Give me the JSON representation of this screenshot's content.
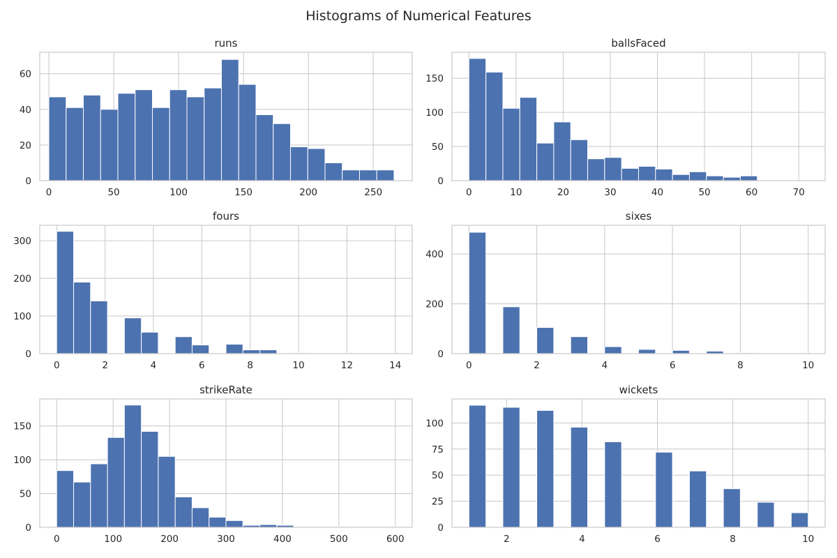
{
  "figure": {
    "title": "Histograms of Numerical Features"
  },
  "style": {
    "bar_color": "#4c72b0",
    "grid_color": "#cccccc",
    "frame_color": "#cccccc",
    "text_color": "#262626"
  },
  "chart_data": [
    {
      "type": "bar",
      "title": "runs",
      "bins": [
        [
          0,
          13.3
        ],
        [
          13.3,
          26.6
        ],
        [
          26.6,
          39.9
        ],
        [
          39.9,
          53.2
        ],
        [
          53.2,
          66.5
        ],
        [
          66.5,
          79.8
        ],
        [
          79.8,
          93.1
        ],
        [
          93.1,
          106.4
        ],
        [
          106.4,
          119.7
        ],
        [
          119.7,
          133
        ],
        [
          133,
          146.3
        ],
        [
          146.3,
          159.6
        ],
        [
          159.6,
          172.9
        ],
        [
          172.9,
          186.2
        ],
        [
          186.2,
          199.5
        ],
        [
          199.5,
          212.8
        ],
        [
          212.8,
          226.1
        ],
        [
          226.1,
          239.4
        ],
        [
          239.4,
          252.7
        ],
        [
          252.7,
          266
        ]
      ],
      "values": [
        47,
        41,
        48,
        40,
        49,
        51,
        41,
        51,
        47,
        52,
        68,
        54,
        37,
        32,
        19,
        18,
        10,
        6,
        6,
        6
      ],
      "xlim": [
        -7,
        280
      ],
      "ylim": [
        0,
        72
      ],
      "xticks": [
        0,
        50,
        100,
        150,
        200,
        250
      ],
      "yticks": [
        0,
        20,
        40,
        60
      ],
      "grid": true
    },
    {
      "type": "bar",
      "title": "ballsFaced",
      "bins": [
        [
          0,
          3.6
        ],
        [
          3.6,
          7.2
        ],
        [
          7.2,
          10.8
        ],
        [
          10.8,
          14.4
        ],
        [
          14.4,
          18
        ],
        [
          18,
          21.6
        ],
        [
          21.6,
          25.2
        ],
        [
          25.2,
          28.8
        ],
        [
          28.8,
          32.4
        ],
        [
          32.4,
          36
        ],
        [
          36,
          39.6
        ],
        [
          39.6,
          43.2
        ],
        [
          43.2,
          46.8
        ],
        [
          46.8,
          50.4
        ],
        [
          50.4,
          54
        ],
        [
          54,
          57.6
        ],
        [
          57.6,
          61.2
        ],
        [
          61.2,
          64.8
        ],
        [
          64.8,
          68.4
        ],
        [
          68.4,
          72
        ]
      ],
      "values": [
        179,
        159,
        106,
        122,
        55,
        86,
        60,
        32,
        34,
        18,
        21,
        17,
        9,
        13,
        7,
        5,
        7,
        1,
        1,
        1
      ],
      "xlim": [
        -3.6,
        75.6
      ],
      "ylim": [
        0,
        188
      ],
      "xticks": [
        0,
        10,
        20,
        30,
        40,
        50,
        60,
        70
      ],
      "yticks": [
        0,
        50,
        100,
        150
      ],
      "grid": true
    },
    {
      "type": "bar",
      "title": "fours",
      "bins": [
        [
          0,
          0.7
        ],
        [
          0.7,
          1.4
        ],
        [
          1.4,
          2.1
        ],
        [
          2.1,
          2.8
        ],
        [
          2.8,
          3.5
        ],
        [
          3.5,
          4.2
        ],
        [
          4.2,
          4.9
        ],
        [
          4.9,
          5.6
        ],
        [
          5.6,
          6.3
        ],
        [
          6.3,
          7
        ],
        [
          7,
          7.7
        ],
        [
          7.7,
          8.4
        ],
        [
          8.4,
          9.1
        ],
        [
          9.1,
          9.8
        ],
        [
          9.8,
          10.5
        ],
        [
          10.5,
          11.2
        ],
        [
          11.2,
          11.9
        ],
        [
          11.9,
          12.6
        ],
        [
          12.6,
          13.3
        ],
        [
          13.3,
          14
        ]
      ],
      "values": [
        325,
        190,
        140,
        0,
        95,
        57,
        0,
        45,
        23,
        0,
        25,
        10,
        10,
        0,
        2,
        1,
        0,
        1,
        0,
        1
      ],
      "xlim": [
        -0.7,
        14.7
      ],
      "ylim": [
        0,
        341
      ],
      "xticks": [
        0,
        2,
        4,
        6,
        8,
        10,
        12,
        14
      ],
      "yticks": [
        0,
        100,
        200,
        300
      ],
      "grid": true
    },
    {
      "type": "bar",
      "title": "sixes",
      "bins": [
        [
          0,
          0.5
        ],
        [
          0.5,
          1
        ],
        [
          1,
          1.5
        ],
        [
          1.5,
          2
        ],
        [
          2,
          2.5
        ],
        [
          2.5,
          3
        ],
        [
          3,
          3.5
        ],
        [
          3.5,
          4
        ],
        [
          4,
          4.5
        ],
        [
          4.5,
          5
        ],
        [
          5,
          5.5
        ],
        [
          5.5,
          6
        ],
        [
          6,
          6.5
        ],
        [
          6.5,
          7
        ],
        [
          7,
          7.5
        ],
        [
          7.5,
          8
        ],
        [
          8,
          8.5
        ],
        [
          8.5,
          9
        ],
        [
          9,
          9.5
        ],
        [
          9.5,
          10
        ]
      ],
      "values": [
        487,
        0,
        188,
        0,
        105,
        0,
        68,
        0,
        28,
        0,
        17,
        0,
        13,
        0,
        10,
        0,
        3,
        0,
        1,
        1
      ],
      "xlim": [
        -0.5,
        10.5
      ],
      "ylim": [
        0,
        515
      ],
      "xticks": [
        0,
        2,
        4,
        6,
        8,
        10
      ],
      "yticks": [
        0,
        200,
        400
      ],
      "grid": true
    },
    {
      "type": "bar",
      "title": "strikeRate",
      "bins": [
        [
          0,
          30
        ],
        [
          30,
          60
        ],
        [
          60,
          90
        ],
        [
          90,
          120
        ],
        [
          120,
          150
        ],
        [
          150,
          180
        ],
        [
          180,
          210
        ],
        [
          210,
          240
        ],
        [
          240,
          270
        ],
        [
          270,
          300
        ],
        [
          300,
          330
        ],
        [
          330,
          360
        ],
        [
          360,
          390
        ],
        [
          390,
          420
        ],
        [
          420,
          450
        ],
        [
          450,
          480
        ],
        [
          480,
          510
        ],
        [
          510,
          540
        ],
        [
          540,
          570
        ],
        [
          570,
          600
        ]
      ],
      "values": [
        84,
        67,
        94,
        133,
        181,
        142,
        105,
        45,
        29,
        15,
        10,
        3,
        4,
        3,
        1,
        1,
        1,
        0,
        0,
        1
      ],
      "xlim": [
        -30,
        630
      ],
      "ylim": [
        0,
        190
      ],
      "xticks": [
        0,
        100,
        200,
        300,
        400,
        500,
        600
      ],
      "yticks": [
        0,
        50,
        100,
        150
      ],
      "grid": true
    },
    {
      "type": "bar",
      "title": "wickets",
      "bins": [
        [
          1,
          1.45
        ],
        [
          1.45,
          1.9
        ],
        [
          1.9,
          2.35
        ],
        [
          2.35,
          2.8
        ],
        [
          2.8,
          3.25
        ],
        [
          3.25,
          3.7
        ],
        [
          3.7,
          4.15
        ],
        [
          4.15,
          4.6
        ],
        [
          4.6,
          5.05
        ],
        [
          5.05,
          5.5
        ],
        [
          5.5,
          5.95
        ],
        [
          5.95,
          6.4
        ],
        [
          6.4,
          6.85
        ],
        [
          6.85,
          7.3
        ],
        [
          7.3,
          7.75
        ],
        [
          7.75,
          8.2
        ],
        [
          8.2,
          8.65
        ],
        [
          8.65,
          9.1
        ],
        [
          9.1,
          9.55
        ],
        [
          9.55,
          10
        ]
      ],
      "values": [
        117,
        0,
        115,
        0,
        112,
        0,
        96,
        0,
        82,
        0,
        0,
        72,
        0,
        54,
        0,
        37,
        0,
        24,
        0,
        14
      ],
      "xlim": [
        0.55,
        10.45
      ],
      "ylim": [
        0,
        123
      ],
      "xticks": [
        2,
        4,
        6,
        8,
        10
      ],
      "yticks": [
        0,
        25,
        50,
        75,
        100
      ],
      "grid": true
    }
  ]
}
